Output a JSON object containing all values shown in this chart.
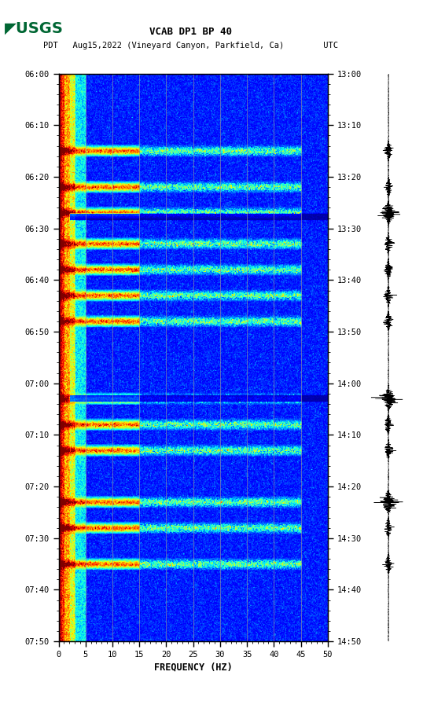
{
  "title_line1": "VCAB DP1 BP 40",
  "title_line2": "PDT   Aug15,2022 (Vineyard Canyon, Parkfield, Ca)        UTC",
  "xlabel": "FREQUENCY (HZ)",
  "freq_min": 0,
  "freq_max": 50,
  "pdt_ticks": [
    "06:00",
    "06:10",
    "06:20",
    "06:30",
    "06:40",
    "06:50",
    "07:00",
    "07:10",
    "07:20",
    "07:30",
    "07:40",
    "07:50"
  ],
  "utc_ticks": [
    "13:00",
    "13:10",
    "13:20",
    "13:30",
    "13:40",
    "13:50",
    "14:00",
    "14:10",
    "14:20",
    "14:30",
    "14:40",
    "14:50"
  ],
  "freq_ticks": [
    0,
    5,
    10,
    15,
    20,
    25,
    30,
    35,
    40,
    45,
    50
  ],
  "vertical_lines_freq": [
    5,
    10,
    15,
    20,
    25,
    30,
    35,
    40,
    45
  ],
  "background_color": "#ffffff",
  "colormap": "jet",
  "usgs_logo_color": "#006633",
  "vline_color": "#9090a0",
  "n_time": 660,
  "n_freq": 500,
  "event_times_min": [
    15,
    22,
    27,
    33,
    38,
    43,
    48,
    63,
    68,
    73,
    83,
    88,
    95
  ],
  "dark_band_times_min": [
    28,
    63
  ],
  "seed": 42
}
